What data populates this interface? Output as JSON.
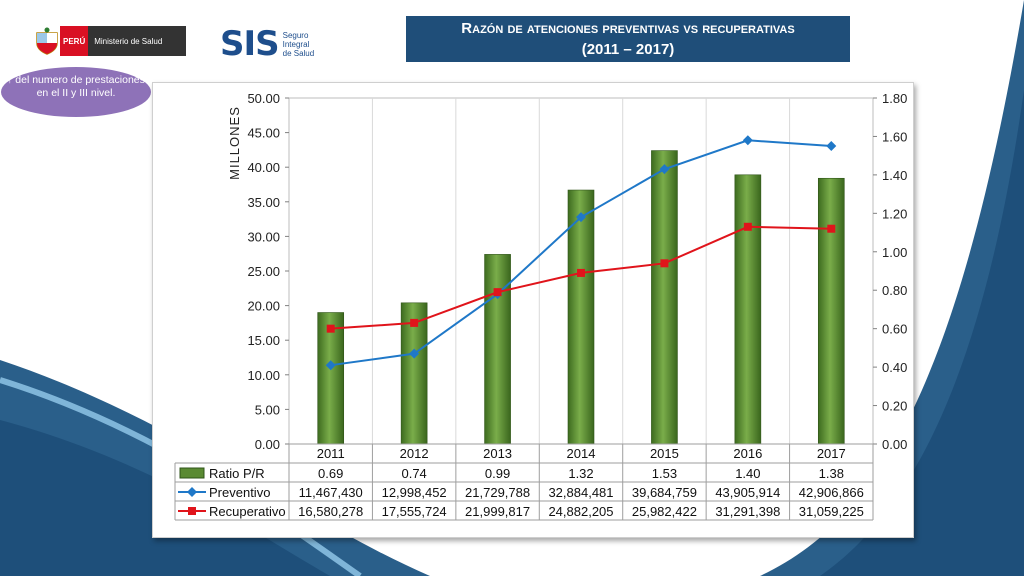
{
  "header": {
    "peru_label": "PERÚ",
    "ministry_label": "Ministerio de Salud",
    "sis_label": "SIS",
    "sis_sub": [
      "Seguro",
      "Integral",
      "de Salud"
    ],
    "title_line1": "Razón de atenciones preventivas vs recuperativas",
    "title_line2": "(2011 – 2017)"
  },
  "callout": {
    "text": "↑ del numero de prestaciones en el II y III nivel."
  },
  "colors": {
    "bar": "#5a8a32",
    "preventivo": "#1f78c8",
    "recuperativo": "#e0141b",
    "title_bg": "#1f4e79"
  },
  "chart_data": {
    "type": "bar",
    "categories": [
      "2011",
      "2012",
      "2013",
      "2014",
      "2015",
      "2016",
      "2017"
    ],
    "ylabel": "MILLONES",
    "ylim_left": [
      0,
      50
    ],
    "yticks_left": [
      "0.00",
      "5.00",
      "10.00",
      "15.00",
      "20.00",
      "25.00",
      "30.00",
      "35.00",
      "40.00",
      "45.00",
      "50.00"
    ],
    "ylim_right": [
      0,
      1.8
    ],
    "yticks_right": [
      "0.00",
      "0.20",
      "0.40",
      "0.60",
      "0.80",
      "1.00",
      "1.20",
      "1.40",
      "1.60",
      "1.80"
    ],
    "series": [
      {
        "name": "Ratio P/R",
        "kind": "bar",
        "axis": "left",
        "values": [
          19.0,
          20.4,
          27.4,
          36.7,
          42.4,
          38.9,
          38.4
        ],
        "labels": [
          "0.69",
          "0.74",
          "0.99",
          "1.32",
          "1.53",
          "1.40",
          "1.38"
        ]
      },
      {
        "name": "Preventivo",
        "kind": "line",
        "axis": "right",
        "values": [
          0.41,
          0.47,
          0.78,
          1.18,
          1.43,
          1.58,
          1.55
        ],
        "labels": [
          "11,467,430",
          "12,998,452",
          "21,729,788",
          "32,884,481",
          "39,684,759",
          "43,905,914",
          "42,906,866"
        ]
      },
      {
        "name": "Recuperativo",
        "kind": "line",
        "axis": "right",
        "values": [
          0.6,
          0.63,
          0.79,
          0.89,
          0.94,
          1.13,
          1.12
        ],
        "labels": [
          "16,580,278",
          "17,555,724",
          "21,999,817",
          "24,882,205",
          "25,982,422",
          "31,291,398",
          "31,059,225"
        ]
      }
    ],
    "grid": true,
    "legend": "data-table"
  }
}
